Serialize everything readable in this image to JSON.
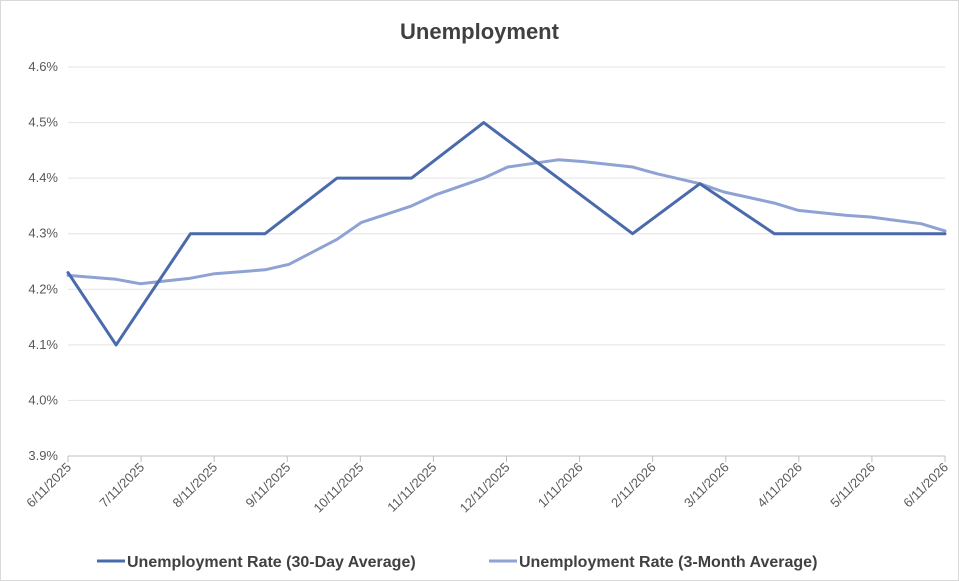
{
  "chart_data": {
    "type": "line",
    "title": "Unemployment",
    "x_tick_labels": [
      "6/11/2025",
      "7/11/2025",
      "8/11/2025",
      "9/11/2025",
      "10/11/2025",
      "11/11/2025",
      "12/11/2025",
      "1/11/2026",
      "2/11/2026",
      "3/11/2026",
      "4/11/2026",
      "5/11/2026",
      "6/11/2026"
    ],
    "y_tick_labels": [
      "3.9%",
      "4.0%",
      "4.1%",
      "4.2%",
      "4.3%",
      "4.4%",
      "4.5%",
      "4.6%"
    ],
    "ylim": [
      3.9,
      4.6
    ],
    "y_unit": "%",
    "grid": "horizontal",
    "legend_position": "bottom",
    "series": [
      {
        "name": "Unemployment Rate (30-Day Average)",
        "color": "#4a6aab",
        "points": [
          {
            "x": "2025-06-11",
            "y": 4.23
          },
          {
            "x": "2025-07-01",
            "y": 4.1
          },
          {
            "x": "2025-08-01",
            "y": 4.3
          },
          {
            "x": "2025-09-01",
            "y": 4.3
          },
          {
            "x": "2025-10-01",
            "y": 4.4
          },
          {
            "x": "2025-11-01",
            "y": 4.4
          },
          {
            "x": "2025-12-01",
            "y": 4.5
          },
          {
            "x": "2026-01-01",
            "y": 4.4
          },
          {
            "x": "2026-02-01",
            "y": 4.3
          },
          {
            "x": "2026-03-01",
            "y": 4.39
          },
          {
            "x": "2026-04-01",
            "y": 4.3
          },
          {
            "x": "2026-05-01",
            "y": 4.3
          },
          {
            "x": "2026-06-01",
            "y": 4.3
          },
          {
            "x": "2026-06-11",
            "y": 4.3
          }
        ]
      },
      {
        "name": "Unemployment Rate (3-Month Average)",
        "color": "#8fa2d4",
        "points": [
          {
            "x": "2025-06-11",
            "y": 4.225
          },
          {
            "x": "2025-07-01",
            "y": 4.218
          },
          {
            "x": "2025-07-11",
            "y": 4.21
          },
          {
            "x": "2025-08-01",
            "y": 4.22
          },
          {
            "x": "2025-08-11",
            "y": 4.228
          },
          {
            "x": "2025-09-01",
            "y": 4.235
          },
          {
            "x": "2025-09-11",
            "y": 4.245
          },
          {
            "x": "2025-10-01",
            "y": 4.29
          },
          {
            "x": "2025-10-11",
            "y": 4.32
          },
          {
            "x": "2025-11-01",
            "y": 4.35
          },
          {
            "x": "2025-11-11",
            "y": 4.37
          },
          {
            "x": "2025-12-01",
            "y": 4.4
          },
          {
            "x": "2025-12-11",
            "y": 4.42
          },
          {
            "x": "2026-01-01",
            "y": 4.433
          },
          {
            "x": "2026-01-11",
            "y": 4.43
          },
          {
            "x": "2026-02-01",
            "y": 4.42
          },
          {
            "x": "2026-02-11",
            "y": 4.408
          },
          {
            "x": "2026-03-01",
            "y": 4.39
          },
          {
            "x": "2026-03-11",
            "y": 4.375
          },
          {
            "x": "2026-04-01",
            "y": 4.355
          },
          {
            "x": "2026-04-11",
            "y": 4.342
          },
          {
            "x": "2026-05-01",
            "y": 4.333
          },
          {
            "x": "2026-05-11",
            "y": 4.33
          },
          {
            "x": "2026-06-01",
            "y": 4.318
          },
          {
            "x": "2026-06-11",
            "y": 4.305
          }
        ]
      }
    ]
  }
}
